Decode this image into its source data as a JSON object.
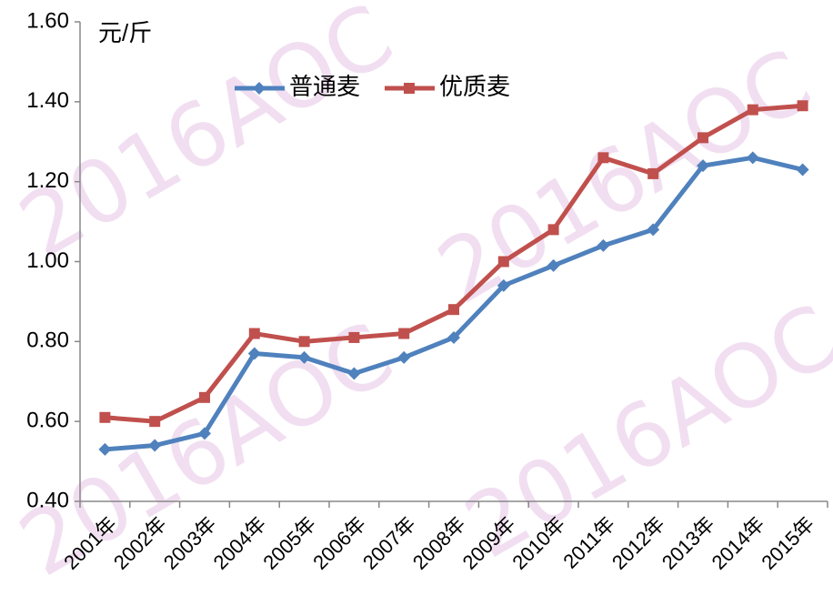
{
  "chart_data": {
    "type": "line",
    "y_label": "元/斤",
    "watermark": "2016AOC",
    "categories": [
      "2001年",
      "2002年",
      "2003年",
      "2004年",
      "2005年",
      "2006年",
      "2007年",
      "2008年",
      "2009年",
      "2010年",
      "2011年",
      "2012年",
      "2013年",
      "2014年",
      "2015年"
    ],
    "series": [
      {
        "name": "普通麦",
        "color": "#4f81bd",
        "marker": "diamond",
        "values": [
          0.53,
          0.54,
          0.57,
          0.77,
          0.76,
          0.72,
          0.76,
          0.81,
          0.94,
          0.99,
          1.04,
          1.08,
          1.24,
          1.26,
          1.23
        ]
      },
      {
        "name": "优质麦",
        "color": "#c0504d",
        "marker": "square",
        "values": [
          0.61,
          0.6,
          0.66,
          0.82,
          0.8,
          0.81,
          0.82,
          0.88,
          1.0,
          1.08,
          1.26,
          1.22,
          1.31,
          1.38,
          1.39
        ]
      }
    ],
    "ylim": [
      0.4,
      1.6
    ],
    "yticks": [
      {
        "value": 0.4,
        "label": "0.40"
      },
      {
        "value": 0.6,
        "label": "0.60"
      },
      {
        "value": 0.8,
        "label": "0.80"
      },
      {
        "value": 1.0,
        "label": "1.00"
      },
      {
        "value": 1.2,
        "label": "1.20"
      },
      {
        "value": 1.4,
        "label": "1.40"
      },
      {
        "value": 1.6,
        "label": "1.60"
      }
    ],
    "legend": "top"
  }
}
